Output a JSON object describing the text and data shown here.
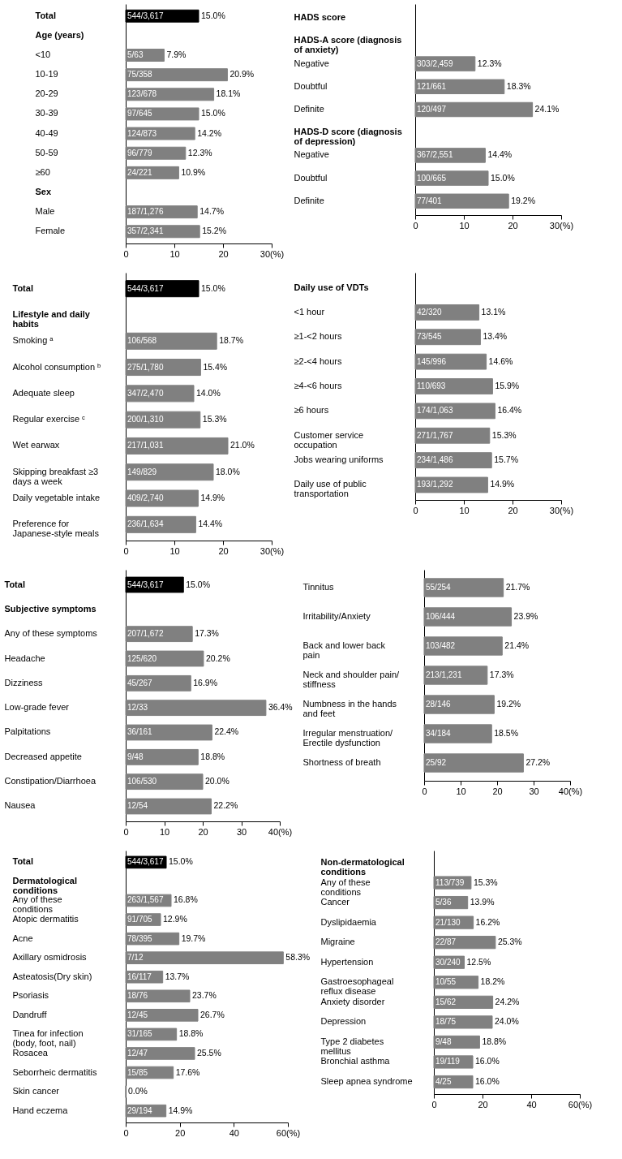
{
  "chart_data": [
    {
      "type": "bar",
      "orientation": "horizontal",
      "categories": [
        "Total",
        "Age (years)",
        "<10",
        "10-19",
        "20-29",
        "30-39",
        "40-49",
        "50-59",
        "≥60",
        "Sex",
        "Male",
        "Female"
      ],
      "values": [
        15.0,
        null,
        7.9,
        20.9,
        18.1,
        15.0,
        14.2,
        12.3,
        10.9,
        null,
        14.7,
        15.2
      ],
      "colors": [
        "#000000",
        null,
        "#808080",
        "#808080",
        "#808080",
        "#808080",
        "#808080",
        "#808080",
        "#808080",
        null,
        "#808080",
        "#808080"
      ],
      "value_labels": [
        "15.0%",
        null,
        "7.9%",
        "20.9%",
        "18.1%",
        "15.0%",
        "14.2%",
        "12.3%",
        "10.9%",
        null,
        "14.7%",
        "15.2%"
      ],
      "annotations": [
        {
          "text": "544/3,617",
          "y": "Total"
        },
        {
          "text": "5/63",
          "y": "<10"
        },
        {
          "text": "75/358",
          "y": "10-19"
        },
        {
          "text": "123/678",
          "y": "20-29"
        },
        {
          "text": "97/645",
          "y": "30-39"
        },
        {
          "text": "124/873",
          "y": "40-49"
        },
        {
          "text": "96/779",
          "y": "50-59"
        },
        {
          "text": "24/221",
          "y": "≥60"
        },
        {
          "text": "187/1,276",
          "y": "Male"
        },
        {
          "text": "357/2,341",
          "y": "Female"
        }
      ],
      "xlim": [
        0,
        30
      ],
      "xticks": [
        0,
        10,
        20,
        {
          "value": 30,
          "label": "30(%)"
        }
      ]
    },
    {
      "type": "bar",
      "orientation": "horizontal",
      "categories": [
        "HADS score",
        "HADS-A score (diagnosis of anxiety)",
        "Negative",
        "Doubtful",
        "Definite",
        "HADS-D score (diagnosis of depression)",
        "Negative",
        "Doubtful",
        "Definite"
      ],
      "values": [
        null,
        null,
        12.3,
        18.3,
        24.1,
        null,
        14.4,
        15.0,
        19.2
      ],
      "colors": [
        null,
        null,
        "#808080",
        "#808080",
        "#808080",
        null,
        "#808080",
        "#808080",
        "#808080"
      ],
      "value_labels": [
        null,
        null,
        "12.3%",
        "18.3%",
        "24.1%",
        null,
        "14.4%",
        "15.0%",
        "19.2%"
      ],
      "annotations": [
        {
          "text": "303/2,459",
          "y": "Negative"
        },
        {
          "text": "121/661",
          "y": "Doubtful"
        },
        {
          "text": "120/497",
          "y": "Definite"
        },
        "367/2,551",
        "100/665",
        "77/401"
      ],
      "xlim": [
        0,
        30
      ],
      "xticks": [
        0,
        10,
        20,
        {
          "value": 30,
          "label": "30(%)"
        }
      ]
    },
    {
      "type": "bar",
      "orientation": "horizontal",
      "categories": [
        "Total",
        "Lifestyle and daily habits",
        "Smoking ᵃ",
        "Alcohol consumption ᵇ",
        "Adequate sleep",
        "Regular exercise ᶜ",
        "Wet earwax",
        "Skipping breakfast ≥3 days a week",
        "Daily vegetable intake",
        "Preference for Japanese-style meals"
      ],
      "values": [
        15.0,
        null,
        18.7,
        15.4,
        14.0,
        15.3,
        21.0,
        18.0,
        14.9,
        14.4
      ],
      "colors": [
        "#000000",
        null,
        "#808080",
        "#808080",
        "#808080",
        "#808080",
        "#808080",
        "#808080",
        "#808080",
        "#808080"
      ],
      "value_labels": [
        "15.0%",
        null,
        "18.7%",
        "15.4%",
        "14.0%",
        "15.3%",
        "21.0%",
        "18.0%",
        "14.9%",
        "14.4%"
      ],
      "annotations": [
        {
          "text": "544/3,617",
          "y": "Total"
        },
        {
          "text": "106/568",
          "y": "Smoking ᵃ"
        },
        {
          "text": "275/1,780",
          "y": "Alcohol consumption ᵇ"
        },
        {
          "text": "347/2,470",
          "y": "Adequate sleep"
        },
        {
          "text": "200/1,310",
          "y": "Regular exercise ᶜ"
        },
        {
          "text": "217/1,031",
          "y": "Wet earwax"
        },
        "149/829",
        "409/2,740",
        "236/1,634"
      ],
      "xlim": [
        0,
        30
      ],
      "xticks": [
        0,
        10,
        20,
        {
          "value": 30,
          "label": "30(%)"
        }
      ]
    },
    {
      "type": "bar",
      "orientation": "horizontal",
      "categories": [
        "Daily use of VDTs",
        "<1 hour",
        "≥1-<2 hours",
        "≥2-<4 hours",
        "≥4-<6 hours",
        "≥6 hours",
        "Customer service occupation",
        "Jobs wearing uniforms",
        "Daily use of public transportation"
      ],
      "values": [
        null,
        13.1,
        13.4,
        14.6,
        15.9,
        16.4,
        15.3,
        15.7,
        14.9
      ],
      "colors": [
        null,
        "#808080",
        "#808080",
        "#808080",
        "#808080",
        "#808080",
        "#808080",
        "#808080",
        "#808080"
      ],
      "value_labels": [
        null,
        "13.1%",
        "13.4%",
        "14.6%",
        "15.9%",
        "16.4%",
        "15.3%",
        "15.7%",
        "14.9%"
      ],
      "annotations": [
        {
          "text": "42/320",
          "y": "<1 hour"
        },
        {
          "text": "73/545",
          "y": "≥1-<2 hours"
        },
        {
          "text": "145/996",
          "y": "≥2-<4 hours"
        },
        {
          "text": "110/693",
          "y": "≥4-<6 hours"
        },
        {
          "text": "174/1,063",
          "y": "≥6 hours"
        },
        "271/1,767",
        "234/1,486",
        "193/1,292"
      ],
      "xlim": [
        0,
        30
      ],
      "xticks": [
        0,
        10,
        20,
        {
          "value": 30,
          "label": "30(%)"
        }
      ]
    },
    {
      "type": "bar",
      "orientation": "horizontal",
      "categories": [
        "Total",
        "Subjective symptoms",
        "Any of these symptoms",
        "Headache",
        "Dizziness",
        "Low-grade fever",
        "Palpitations",
        "Decreased appetite",
        "Constipation/Diarrhoea",
        "Nausea"
      ],
      "values": [
        15.0,
        null,
        17.3,
        20.2,
        16.9,
        36.4,
        22.4,
        18.8,
        20.0,
        22.2
      ],
      "colors": [
        "#000000",
        null,
        "#808080",
        "#808080",
        "#808080",
        "#808080",
        "#808080",
        "#808080",
        "#808080",
        "#808080"
      ],
      "value_labels": [
        "15.0%",
        null,
        "17.3%",
        "20.2%",
        "16.9%",
        "36.4%",
        "22.4%",
        "18.8%",
        "20.0%",
        "22.2%"
      ],
      "annotations": [
        {
          "text": "544/3,617",
          "y": "Total"
        },
        {
          "text": "207/1,672",
          "y": "Any of these symptoms"
        },
        {
          "text": "125/620",
          "y": "Headache"
        },
        {
          "text": "45/267",
          "y": "Dizziness"
        },
        {
          "text": "12/33",
          "y": "Low-grade fever"
        },
        {
          "text": "36/161",
          "y": "Palpitations"
        },
        {
          "text": "9/48",
          "y": "Decreased appetite"
        },
        {
          "text": "106/530",
          "y": "Constipation/Diarrhoea"
        },
        {
          "text": "12/54",
          "y": "Nausea"
        }
      ],
      "xlim": [
        0,
        40
      ],
      "xticks": [
        0,
        10,
        20,
        30,
        {
          "value": 40,
          "label": "40(%)"
        }
      ]
    },
    {
      "type": "bar",
      "orientation": "horizontal",
      "categories": [
        "Tinnitus",
        "Irritability/Anxiety",
        "Back and lower back pain",
        "Neck and shoulder pain/stiffness",
        "Numbness in the hands and feet",
        "Irregular menstruation/Erectile dysfunction",
        "Shortness of breath"
      ],
      "values": [
        21.7,
        23.9,
        21.4,
        17.3,
        19.2,
        18.5,
        27.2
      ],
      "colors": [
        "#808080",
        "#808080",
        "#808080",
        "#808080",
        "#808080",
        "#808080",
        "#808080"
      ],
      "value_labels": [
        "21.7%",
        "23.9%",
        "21.4%",
        "17.3%",
        "19.2%",
        "18.5%",
        "27.2%"
      ],
      "annotations": [
        "55/254",
        "106/444",
        "103/482",
        "213/1,231",
        "28/146",
        "34/184",
        "25/92"
      ],
      "xlim": [
        0,
        40
      ],
      "xticks": [
        0,
        10,
        20,
        30,
        {
          "value": 40,
          "label": "40(%)"
        }
      ]
    },
    {
      "type": "bar",
      "orientation": "horizontal",
      "categories": [
        "Total",
        "Dermatological conditions",
        "Any of these conditions",
        "Atopic dermatitis",
        "Acne",
        "Axillary osmidrosis",
        "Asteatosis(Dry skin)",
        "Psoriasis",
        "Dandruff",
        "Tinea for infection (body, foot, nail)",
        "Rosacea",
        "Seborrheic dermatitis",
        "Skin cancer",
        "Hand eczema"
      ],
      "values": [
        15.0,
        null,
        16.8,
        12.9,
        19.7,
        58.3,
        13.7,
        23.7,
        26.7,
        18.8,
        25.5,
        17.6,
        0.0,
        14.9
      ],
      "colors": [
        "#000000",
        null,
        "#808080",
        "#808080",
        "#808080",
        "#808080",
        "#808080",
        "#808080",
        "#808080",
        "#808080",
        "#808080",
        "#808080",
        "#808080",
        "#808080"
      ],
      "value_labels": [
        "15.0%",
        null,
        "16.8%",
        "12.9%",
        "19.7%",
        "58.3%",
        "13.7%",
        "23.7%",
        "26.7%",
        "18.8%",
        "25.5%",
        "17.6%",
        "0.0%",
        "14.9%"
      ],
      "annotations": [
        {
          "text": "544/3,617",
          "y": "Total"
        },
        {
          "text": "263/1,567",
          "y": "Any of these conditions"
        },
        {
          "text": "91/705",
          "y": "Atopic dermatitis"
        },
        {
          "text": "78/395",
          "y": "Acne"
        },
        {
          "text": "7/12",
          "y": "Axillary osmidrosis"
        },
        {
          "text": "16/117",
          "y": "Asteatosis(Dry skin)"
        },
        {
          "text": "18/76",
          "y": "Psoriasis"
        },
        {
          "text": "12/45",
          "y": "Dandruff"
        },
        {
          "text": "31/165",
          "y": "Tinea for infection (body, foot, nail)"
        },
        {
          "text": "12/47",
          "y": "Rosacea"
        },
        {
          "text": "15/85",
          "y": "Seborrheic dermatitis"
        },
        {
          "text": "29/194",
          "y": "Hand eczema"
        }
      ],
      "xlim": [
        0,
        60
      ],
      "xticks": [
        0,
        20,
        40,
        {
          "value": 60,
          "label": "60(%)"
        }
      ]
    },
    {
      "type": "bar",
      "orientation": "horizontal",
      "categories": [
        "Non-dermatological conditions",
        "Any of these conditions",
        "Cancer",
        "Dyslipidaemia",
        "Migraine",
        "Hypertension",
        "Gastroesophageal reflux disease",
        "Anxiety disorder",
        "Depression",
        "Type 2 diabetes mellitus",
        "Bronchial asthma",
        "Sleep apnea syndrome"
      ],
      "values": [
        null,
        15.3,
        13.9,
        16.2,
        25.3,
        12.5,
        18.2,
        24.2,
        24.0,
        18.8,
        16.0,
        16.0
      ],
      "colors": [
        null,
        "#808080",
        "#808080",
        "#808080",
        "#808080",
        "#808080",
        "#808080",
        "#808080",
        "#808080",
        "#808080",
        "#808080",
        "#808080"
      ],
      "value_labels": [
        null,
        "15.3%",
        "13.9%",
        "16.2%",
        "25.3%",
        "12.5%",
        "18.2%",
        "24.2%",
        "24.0%",
        "18.8%",
        "16.0%",
        "16.0%"
      ],
      "annotations": [
        {
          "text": "113/739",
          "y": "Any of these conditions"
        },
        {
          "text": "5/36",
          "y": "Cancer"
        },
        {
          "text": "21/130",
          "y": "Dyslipidaemia"
        },
        {
          "text": "22/87",
          "y": "Migraine"
        },
        {
          "text": "30/240",
          "y": "Hypertension"
        },
        {
          "text": "10/55",
          "y": "Gastroesophageal reflux disease"
        },
        {
          "text": "15/62",
          "y": "Anxiety disorder"
        },
        {
          "text": "18/75",
          "y": "Depression"
        },
        {
          "text": "9/48",
          "y": "Type 2 diabetes mellitus"
        },
        {
          "text": "19/119",
          "y": "Bronchial asthma"
        },
        {
          "text": "4/25",
          "y": "Sleep apnea syndrome"
        }
      ],
      "xlim": [
        0,
        60
      ],
      "xticks": [
        0,
        20,
        40,
        {
          "value": 60,
          "label": "60(%)"
        }
      ]
    }
  ]
}
